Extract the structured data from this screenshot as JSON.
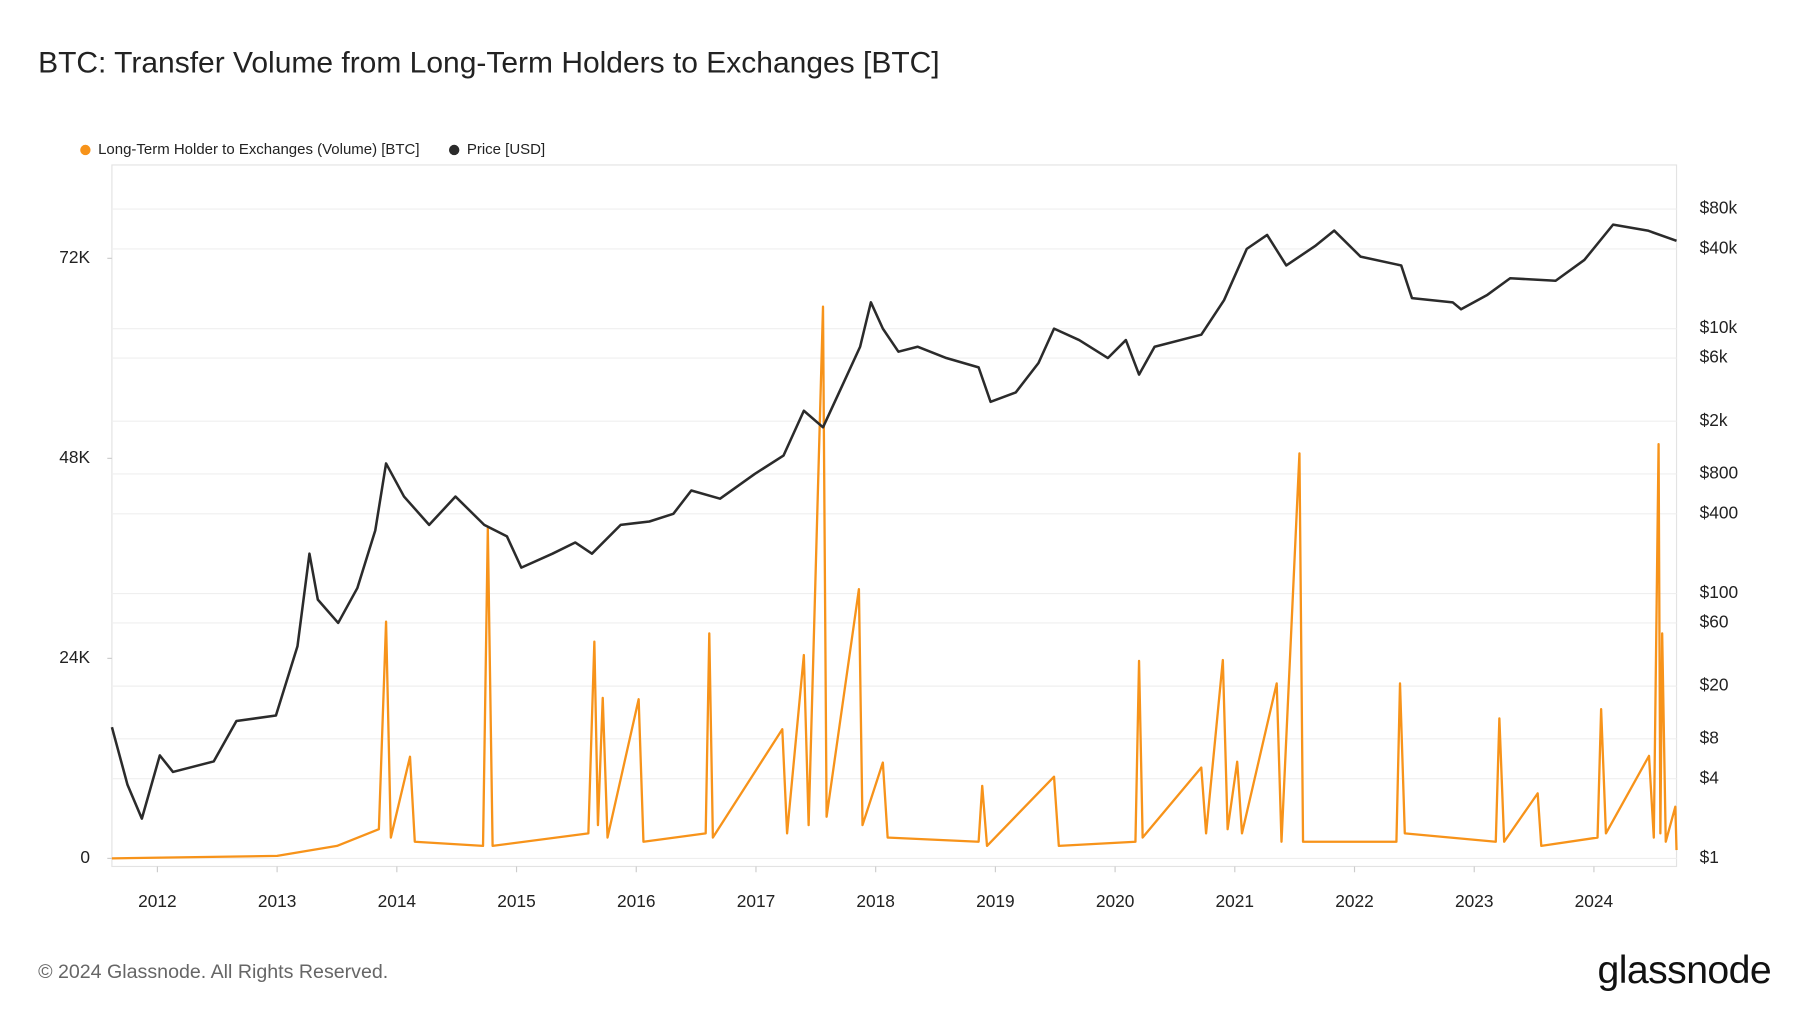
{
  "chart_data": {
    "type": "line",
    "title": "BTC: Transfer Volume from Long-Term Holders to Exchanges [BTC]",
    "copyright": "© 2024 Glassnode. All Rights Reserved.",
    "brand": "glassnode",
    "grid": true,
    "legend": "top-left",
    "xlim": [
      2011.62,
      2024.69
    ],
    "xticks": [
      2012,
      2013,
      2014,
      2015,
      2016,
      2017,
      2018,
      2019,
      2020,
      2021,
      2022,
      2023,
      2024
    ],
    "ylim": [
      -970,
      83200
    ],
    "yticks": [
      {
        "value": 0,
        "label": "0"
      },
      {
        "value": 24000,
        "label": "24K"
      },
      {
        "value": 48000,
        "label": "48K"
      },
      {
        "value": 72000,
        "label": "72K"
      }
    ],
    "y2lim": [
      0.87,
      172000
    ],
    "y2scale": "log",
    "y2ticks": [
      {
        "value": 1,
        "label": "$1"
      },
      {
        "value": 4,
        "label": "$4"
      },
      {
        "value": 8,
        "label": "$8"
      },
      {
        "value": 20,
        "label": "$20"
      },
      {
        "value": 60,
        "label": "$60"
      },
      {
        "value": 100,
        "label": "$100"
      },
      {
        "value": 400,
        "label": "$400"
      },
      {
        "value": 800,
        "label": "$800"
      },
      {
        "value": 2000,
        "label": "$2k"
      },
      {
        "value": 6000,
        "label": "$6k"
      },
      {
        "value": 10000,
        "label": "$10k"
      },
      {
        "value": 40000,
        "label": "$40k"
      },
      {
        "value": 80000,
        "label": "$80k"
      }
    ],
    "series": [
      {
        "name": "Long-Term Holder to Exchanges (Volume) [BTC]",
        "color": "#f7931a",
        "axis": "y",
        "x": [
          2011.62,
          2013.0,
          2013.5,
          2013.85,
          2013.91,
          2013.95,
          2014.11,
          2014.15,
          2014.72,
          2014.76,
          2014.8,
          2015.6,
          2015.65,
          2015.68,
          2015.72,
          2015.76,
          2016.02,
          2016.06,
          2016.58,
          2016.61,
          2016.64,
          2017.22,
          2017.26,
          2017.4,
          2017.44,
          2017.56,
          2017.59,
          2017.86,
          2017.89,
          2018.06,
          2018.1,
          2018.86,
          2018.89,
          2018.93,
          2019.49,
          2019.53,
          2020.17,
          2020.2,
          2020.23,
          2020.72,
          2020.76,
          2020.9,
          2020.94,
          2021.02,
          2021.06,
          2021.35,
          2021.39,
          2021.54,
          2021.57,
          2022.35,
          2022.38,
          2022.42,
          2023.18,
          2023.21,
          2023.25,
          2023.53,
          2023.56,
          2024.03,
          2024.06,
          2024.1,
          2024.46,
          2024.5,
          2024.54,
          2024.555,
          2024.57,
          2024.6,
          2024.68,
          2024.69
        ],
        "values": [
          0,
          300,
          1500,
          3500,
          28400,
          2500,
          12200,
          2000,
          1500,
          39600,
          1500,
          3000,
          26000,
          4000,
          19250,
          2500,
          19100,
          2000,
          3000,
          27000,
          2500,
          15500,
          3000,
          24400,
          4000,
          66200,
          5000,
          32300,
          4000,
          11500,
          2500,
          2000,
          8700,
          1500,
          9800,
          1500,
          2000,
          23700,
          2500,
          10900,
          3000,
          23800,
          3500,
          11600,
          3000,
          21000,
          2000,
          48600,
          2000,
          2000,
          21000,
          3000,
          2000,
          16800,
          2000,
          7800,
          1500,
          2500,
          17900,
          3000,
          12300,
          2500,
          49700,
          3000,
          27000,
          2000,
          6200,
          1000
        ]
      },
      {
        "name": "Price [USD]",
        "color": "#2b2b2b",
        "axis": "y2",
        "x": [
          2011.62,
          2011.75,
          2011.87,
          2012.02,
          2012.13,
          2012.47,
          2012.66,
          2012.99,
          2013.17,
          2013.27,
          2013.34,
          2013.51,
          2013.67,
          2013.82,
          2013.91,
          2014.06,
          2014.27,
          2014.49,
          2014.73,
          2014.92,
          2015.04,
          2015.3,
          2015.49,
          2015.63,
          2015.87,
          2016.11,
          2016.31,
          2016.46,
          2016.7,
          2016.99,
          2017.23,
          2017.4,
          2017.56,
          2017.72,
          2017.87,
          2017.96,
          2018.06,
          2018.19,
          2018.35,
          2018.59,
          2018.86,
          2018.96,
          2019.17,
          2019.36,
          2019.49,
          2019.7,
          2019.94,
          2020.09,
          2020.2,
          2020.33,
          2020.72,
          2020.91,
          2021.1,
          2021.27,
          2021.43,
          2021.67,
          2021.83,
          2022.05,
          2022.39,
          2022.48,
          2022.82,
          2022.89,
          2023.11,
          2023.3,
          2023.68,
          2023.92,
          2024.16,
          2024.45,
          2024.69
        ],
        "values": [
          9.8,
          3.6,
          2.0,
          6.0,
          4.5,
          5.4,
          10.9,
          12,
          40,
          200,
          90,
          60,
          110,
          300,
          960,
          540,
          330,
          540,
          330,
          270,
          157,
          200,
          243,
          200,
          330,
          350,
          400,
          600,
          520,
          800,
          1100,
          2400,
          1800,
          3700,
          7300,
          15800,
          10000,
          6700,
          7300,
          6000,
          5100,
          2800,
          3300,
          5500,
          10000,
          8200,
          6000,
          8200,
          4500,
          7300,
          9000,
          16400,
          40000,
          51000,
          30000,
          42000,
          55000,
          35000,
          30000,
          17000,
          15800,
          14000,
          18000,
          24000,
          23000,
          33000,
          61000,
          55000,
          46000
        ]
      }
    ]
  }
}
